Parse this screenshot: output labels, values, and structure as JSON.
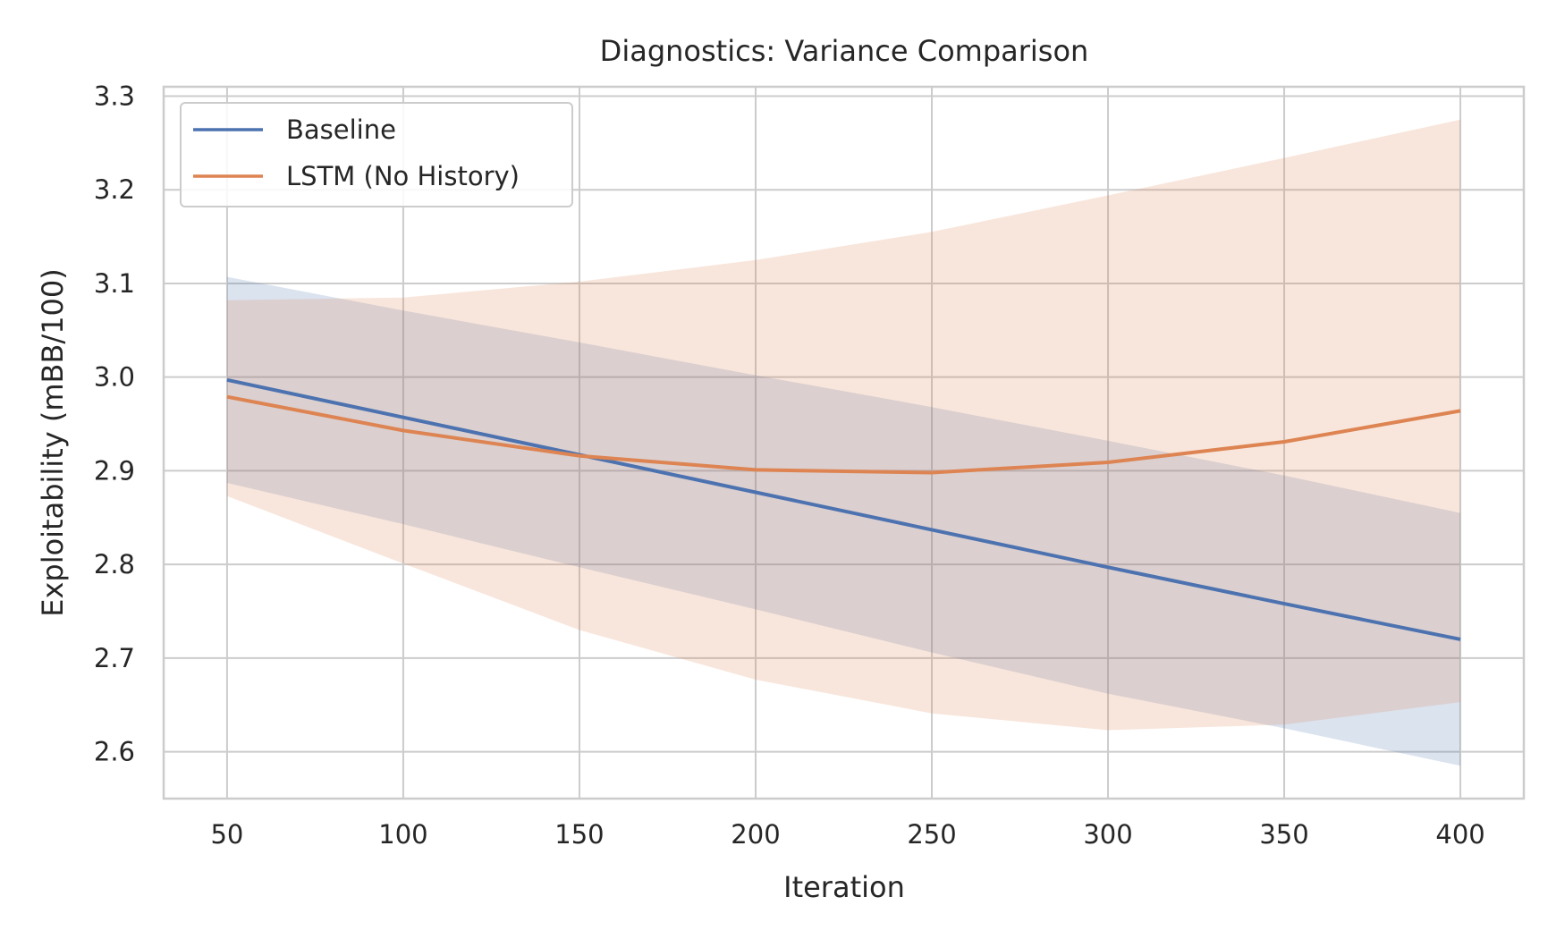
{
  "chart_data": {
    "type": "line",
    "title": "Diagnostics: Variance Comparison",
    "xlabel": "Iteration",
    "ylabel": "Exploitability (mBB/100)",
    "x": [
      50,
      100,
      150,
      200,
      250,
      300,
      350,
      400
    ],
    "xlim": [
      32,
      418
    ],
    "ylim": [
      2.55,
      3.31
    ],
    "xticks": [
      50,
      100,
      150,
      200,
      250,
      300,
      350,
      400
    ],
    "yticks": [
      2.6,
      2.7,
      2.8,
      2.9,
      3.0,
      3.1,
      3.2,
      3.3
    ],
    "xtick_labels": [
      "50",
      "100",
      "150",
      "200",
      "250",
      "300",
      "350",
      "400"
    ],
    "ytick_labels": [
      "2.6",
      "2.7",
      "2.8",
      "2.9",
      "3.0",
      "3.1",
      "3.2",
      "3.3"
    ],
    "grid": true,
    "legend_position": "top-left",
    "series": [
      {
        "name": "Baseline",
        "color": "#4c72b0",
        "band_color": "#4c72b0",
        "values": [
          2.997,
          2.957,
          2.917,
          2.877,
          2.837,
          2.797,
          2.758,
          2.72
        ],
        "lower": [
          2.887,
          2.843,
          2.797,
          2.752,
          2.706,
          2.662,
          2.625,
          2.585
        ],
        "upper": [
          3.107,
          3.071,
          3.037,
          3.002,
          2.968,
          2.932,
          2.895,
          2.855
        ]
      },
      {
        "name": "LSTM (No History)",
        "color": "#dd8452",
        "band_color": "#dd8452",
        "values": [
          2.979,
          2.943,
          2.916,
          2.901,
          2.898,
          2.909,
          2.931,
          2.964
        ],
        "lower": [
          2.873,
          2.801,
          2.73,
          2.677,
          2.641,
          2.623,
          2.629,
          2.653
        ],
        "upper": [
          3.082,
          3.085,
          3.102,
          3.125,
          3.155,
          3.194,
          3.234,
          3.275
        ]
      }
    ]
  }
}
